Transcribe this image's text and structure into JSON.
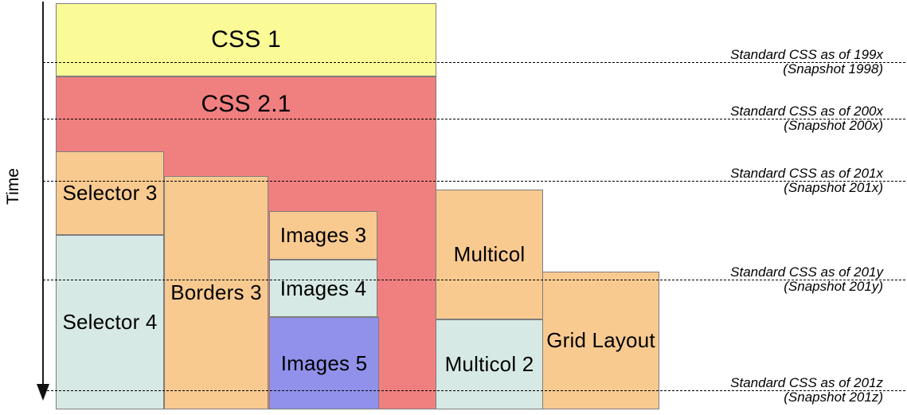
{
  "diagram": {
    "axis_label": "Time",
    "boxes": [
      {
        "label": "CSS 1",
        "color": "#fafa96"
      },
      {
        "label": "CSS 2.1",
        "color": "#f08080"
      },
      {
        "label": "Selector 3",
        "color": "#f8ca90"
      },
      {
        "label": "Selector 4",
        "color": "#d7e9e4"
      },
      {
        "label": "Borders 3",
        "color": "#f8ca90"
      },
      {
        "label": "Images 3",
        "color": "#f8ca90"
      },
      {
        "label": "Images 4",
        "color": "#d7e9e4"
      },
      {
        "label": "Images 5",
        "color": "#9191eb"
      },
      {
        "label": "Multicol",
        "color": "#f8ca90"
      },
      {
        "label": "Multicol 2",
        "color": "#d7e9e4"
      },
      {
        "label": "Grid Layout",
        "color": "#f8ca90"
      }
    ],
    "snapshots": [
      {
        "title": "Standard CSS as of 199x",
        "subtitle": "(Snapshot 1998)"
      },
      {
        "title": "Standard CSS as of 200x",
        "subtitle": "(Snapshot 200x)"
      },
      {
        "title": "Standard CSS as of 201x",
        "subtitle": "(Snapshot 201x)"
      },
      {
        "title": "Standard CSS as of 201y",
        "subtitle": "(Snapshot 201y)"
      },
      {
        "title": "Standard CSS as of 201z",
        "subtitle": "(Snapshot 201z)"
      }
    ],
    "colors": {
      "css1_yellow": "#fafa96",
      "css21_red": "#f08080",
      "module_orange": "#f8ca90",
      "module_cyan": "#d7e9e4",
      "module_purple": "#9191eb",
      "box_border": "#7d7d7d",
      "line_black": "#000000"
    }
  }
}
